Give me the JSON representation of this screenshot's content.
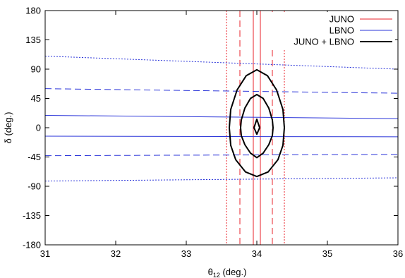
{
  "chart_data": {
    "type": "line",
    "title": "",
    "xlabel": "θ12 (deg.)",
    "xlabel_parts": {
      "base": "θ",
      "sub": "12",
      "rest": " (deg.)"
    },
    "ylabel": "δ (deg.)",
    "xlim": [
      31,
      36
    ],
    "ylim": [
      -180,
      180
    ],
    "xticks": [
      "31",
      "32",
      "33",
      "34",
      "35",
      "36"
    ],
    "yticks": [
      "180",
      "135",
      "90",
      "45",
      "0",
      "-45",
      "-90",
      "-135",
      "-180"
    ],
    "grid": false,
    "legend_position": "top-right",
    "legend": [
      {
        "name": "JUNO",
        "color": "#e8202a"
      },
      {
        "name": "LBNO",
        "color": "#2b35d9"
      },
      {
        "name": "JUNO + LBNO",
        "color": "#000000"
      }
    ],
    "series": [
      {
        "name": "JUNO",
        "orientation": "vertical",
        "color": "#e8202a",
        "lines": [
          {
            "style": "solid",
            "x": 33.95
          },
          {
            "style": "solid",
            "x": 34.05
          },
          {
            "style": "dashed",
            "x": 33.76
          },
          {
            "style": "dashed",
            "x": 34.22
          },
          {
            "style": "dotted",
            "x": 33.57
          },
          {
            "style": "dotted",
            "x": 34.39
          }
        ]
      },
      {
        "name": "LBNO",
        "orientation": "horizontal",
        "color": "#2b35d9",
        "lines": [
          {
            "style": "solid",
            "points": [
              [
                31,
                19
              ],
              [
                36,
                14
              ]
            ]
          },
          {
            "style": "solid",
            "points": [
              [
                31,
                -13
              ],
              [
                36,
                -14
              ]
            ]
          },
          {
            "style": "dashed",
            "points": [
              [
                31,
                60
              ],
              [
                36,
                53
              ]
            ]
          },
          {
            "style": "dashed",
            "points": [
              [
                31,
                -43
              ],
              [
                36,
                -41
              ]
            ]
          },
          {
            "style": "dotted",
            "points": [
              [
                31,
                110
              ],
              [
                36,
                90
              ]
            ]
          },
          {
            "style": "dotted",
            "points": [
              [
                31,
                -82
              ],
              [
                36,
                -77
              ]
            ]
          }
        ]
      },
      {
        "name": "JUNO + LBNO",
        "type": "contour",
        "color": "#000000",
        "contours": [
          {
            "points": [
              [
                34,
                89
              ],
              [
                34.15,
                80
              ],
              [
                34.28,
                58
              ],
              [
                34.37,
                28
              ],
              [
                34.39,
                0
              ],
              [
                34.37,
                -27
              ],
              [
                34.3,
                -49
              ],
              [
                34.16,
                -68
              ],
              [
                34,
                -75
              ],
              [
                33.84,
                -68
              ],
              [
                33.7,
                -49
              ],
              [
                33.63,
                -27
              ],
              [
                33.61,
                0
              ],
              [
                33.63,
                28
              ],
              [
                33.72,
                58
              ],
              [
                33.85,
                80
              ],
              [
                34,
                89
              ]
            ]
          },
          {
            "points": [
              [
                34,
                51
              ],
              [
                34.09,
                45
              ],
              [
                34.17,
                30
              ],
              [
                34.22,
                12
              ],
              [
                34.23,
                0
              ],
              [
                34.22,
                -12
              ],
              [
                34.17,
                -26
              ],
              [
                34.09,
                -39
              ],
              [
                34,
                -46
              ],
              [
                33.91,
                -39
              ],
              [
                33.83,
                -26
              ],
              [
                33.78,
                -12
              ],
              [
                33.77,
                0
              ],
              [
                33.78,
                12
              ],
              [
                33.83,
                30
              ],
              [
                33.91,
                45
              ],
              [
                34,
                51
              ]
            ]
          },
          {
            "points": [
              [
                34,
                13
              ],
              [
                34.04,
                0
              ],
              [
                34,
                -10
              ],
              [
                33.96,
                0
              ],
              [
                34,
                13
              ]
            ]
          }
        ]
      }
    ]
  }
}
